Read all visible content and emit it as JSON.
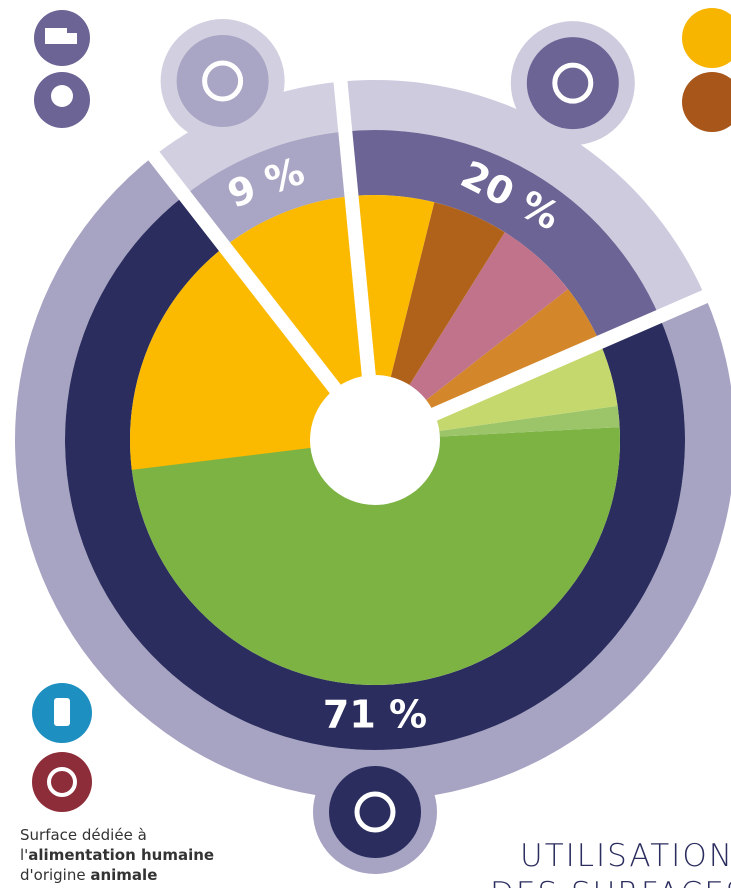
{
  "chart_data": {
    "type": "pie",
    "categories": [
      null,
      null,
      null
    ],
    "values": [
      71,
      9,
      20
    ],
    "value_labels": [
      "71 %",
      "9 %",
      "20 %"
    ],
    "colors": [
      "#2b2d5e",
      "#a9a5c4",
      "#6b6494"
    ],
    "title_lines": [
      "UTILISATION",
      "DES SURFACES"
    ],
    "annotation": [
      [
        {
          "text": "Surface dédiée à"
        }
      ],
      [
        {
          "text": "l'"
        },
        {
          "text": "alimentation humaine",
          "bold": true
        }
      ],
      [
        {
          "text": "d'origine "
        },
        {
          "text": "animale",
          "bold": true
        }
      ]
    ]
  }
}
